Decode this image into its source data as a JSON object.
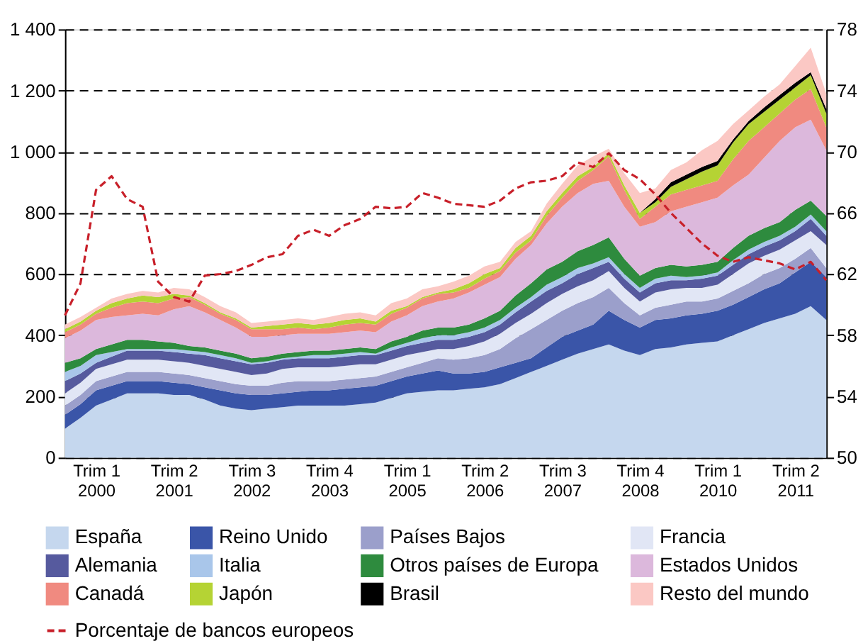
{
  "chart_data": {
    "type": "area",
    "stacked": true,
    "categories": [
      null,
      null,
      "Trim 1 2000",
      null,
      null,
      null,
      null,
      "Trim 2 2001",
      null,
      null,
      null,
      null,
      "Trim 3 2002",
      null,
      null,
      null,
      null,
      "Trim 4 2003",
      null,
      null,
      null,
      null,
      "Trim 1 2005",
      null,
      null,
      null,
      null,
      "Trim 2 2006",
      null,
      null,
      null,
      null,
      "Trim 3 2007",
      null,
      null,
      null,
      null,
      "Trim 4 2008",
      null,
      null,
      null,
      null,
      "Trim 1 2010",
      null,
      null,
      null,
      null,
      "Trim 2 2011",
      null,
      null
    ],
    "ylim": [
      0,
      1400
    ],
    "yticks": [
      0,
      200,
      400,
      600,
      800,
      {
        "value": 1000,
        "label": "1 000"
      },
      {
        "value": 1200,
        "label": "1 200"
      },
      {
        "value": 1400,
        "label": "1 400"
      }
    ],
    "y2lim": [
      50,
      78
    ],
    "y2ticks": [
      50,
      54,
      58,
      62,
      66,
      70,
      74,
      78
    ],
    "grid": "y",
    "legend": "bottom",
    "series": [
      {
        "name": "España",
        "color": "#c5d7ee",
        "values": [
          95,
          130,
          170,
          190,
          210,
          210,
          210,
          205,
          205,
          190,
          170,
          160,
          155,
          160,
          165,
          170,
          170,
          170,
          170,
          175,
          180,
          195,
          210,
          215,
          220,
          220,
          225,
          230,
          240,
          260,
          280,
          300,
          320,
          340,
          355,
          370,
          350,
          335,
          355,
          360,
          370,
          375,
          380,
          400,
          420,
          440,
          455,
          470,
          495,
          450
        ]
      },
      {
        "name": "Reino Unido",
        "color": "#3a55a8",
        "values": [
          45,
          45,
          50,
          45,
          40,
          40,
          40,
          40,
          35,
          40,
          50,
          50,
          50,
          45,
          45,
          45,
          50,
          50,
          55,
          55,
          55,
          55,
          55,
          60,
          65,
          55,
          50,
          50,
          55,
          50,
          45,
          60,
          75,
          75,
          80,
          110,
          100,
          90,
          95,
          95,
          95,
          95,
          100,
          100,
          105,
          110,
          115,
          135,
          145,
          140
        ]
      },
      {
        "name": "Países Bajos",
        "color": "#9b9fcb",
        "values": [
          30,
          30,
          30,
          30,
          30,
          30,
          30,
          30,
          30,
          30,
          30,
          30,
          30,
          30,
          35,
          35,
          30,
          30,
          30,
          30,
          30,
          30,
          30,
          35,
          40,
          45,
          50,
          55,
          60,
          80,
          95,
          90,
          85,
          90,
          90,
          75,
          55,
          40,
          40,
          45,
          45,
          40,
          40,
          45,
          45,
          50,
          50,
          45,
          45,
          30
        ]
      },
      {
        "name": "Francia",
        "color": "#e1e6f5",
        "values": [
          40,
          40,
          40,
          40,
          40,
          40,
          40,
          40,
          40,
          40,
          40,
          40,
          35,
          40,
          45,
          45,
          45,
          45,
          45,
          45,
          40,
          40,
          40,
          35,
          30,
          35,
          40,
          45,
          50,
          50,
          50,
          55,
          55,
          55,
          55,
          55,
          50,
          45,
          50,
          50,
          45,
          45,
          45,
          55,
          65,
          60,
          60,
          60,
          55,
          75
        ]
      },
      {
        "name": "Alemania",
        "color": "#565a9e",
        "values": [
          40,
          30,
          20,
          25,
          30,
          30,
          30,
          30,
          30,
          35,
          35,
          35,
          35,
          35,
          30,
          30,
          30,
          30,
          30,
          30,
          30,
          30,
          30,
          30,
          30,
          30,
          30,
          30,
          30,
          35,
          40,
          40,
          35,
          40,
          40,
          30,
          30,
          30,
          30,
          30,
          25,
          30,
          30,
          30,
          30,
          30,
          30,
          30,
          40,
          30
        ]
      },
      {
        "name": "Italia",
        "color": "#a9c6ea",
        "values": [
          30,
          25,
          25,
          15,
          5,
          5,
          5,
          10,
          10,
          10,
          10,
          10,
          5,
          5,
          5,
          5,
          10,
          10,
          10,
          10,
          5,
          10,
          10,
          15,
          15,
          15,
          15,
          15,
          15,
          15,
          15,
          20,
          20,
          20,
          15,
          15,
          15,
          15,
          15,
          15,
          10,
          10,
          10,
          15,
          15,
          15,
          15,
          15,
          15,
          15
        ]
      },
      {
        "name": "Otros países de Europa",
        "color": "#2e8b3e",
        "values": [
          30,
          25,
          20,
          25,
          30,
          30,
          25,
          20,
          15,
          15,
          15,
          15,
          15,
          15,
          15,
          15,
          15,
          15,
          15,
          15,
          15,
          20,
          20,
          25,
          25,
          25,
          25,
          30,
          30,
          40,
          45,
          50,
          50,
          55,
          60,
          65,
          50,
          40,
          35,
          35,
          35,
          35,
          35,
          40,
          45,
          45,
          45,
          55,
          45,
          50
        ]
      },
      {
        "name": "Estados Unidos",
        "color": "#dcb8dc",
        "values": [
          80,
          90,
          95,
          90,
          80,
          85,
          85,
          110,
          130,
          115,
          100,
          85,
          70,
          65,
          60,
          60,
          55,
          55,
          55,
          55,
          55,
          65,
          70,
          80,
          85,
          95,
          105,
          110,
          110,
          120,
          125,
          150,
          180,
          190,
          200,
          185,
          170,
          160,
          150,
          175,
          195,
          205,
          210,
          205,
          200,
          230,
          265,
          270,
          265,
          215
        ]
      },
      {
        "name": "Canadá",
        "color": "#f08a80",
        "values": [
          20,
          20,
          20,
          30,
          40,
          40,
          40,
          35,
          30,
          25,
          20,
          25,
          25,
          25,
          20,
          20,
          15,
          20,
          25,
          25,
          25,
          25,
          25,
          25,
          25,
          20,
          15,
          20,
          20,
          20,
          15,
          25,
          30,
          40,
          45,
          80,
          55,
          25,
          50,
          55,
          55,
          55,
          55,
          85,
          110,
          100,
          90,
          90,
          100,
          75
        ]
      },
      {
        "name": "Japón",
        "color": "#b5d334",
        "values": [
          10,
          10,
          10,
          15,
          15,
          20,
          20,
          15,
          5,
          5,
          5,
          5,
          5,
          10,
          15,
          15,
          15,
          15,
          15,
          15,
          10,
          10,
          5,
          5,
          5,
          10,
          15,
          15,
          10,
          15,
          15,
          15,
          15,
          15,
          10,
          10,
          15,
          20,
          15,
          25,
          35,
          45,
          50,
          55,
          55,
          50,
          45,
          40,
          45,
          45
        ]
      },
      {
        "name": "Brasil",
        "color": "#000000",
        "values": [
          0,
          0,
          0,
          0,
          0,
          0,
          0,
          0,
          0,
          0,
          0,
          0,
          0,
          0,
          0,
          0,
          0,
          0,
          0,
          0,
          0,
          0,
          0,
          0,
          0,
          0,
          0,
          0,
          0,
          0,
          0,
          0,
          0,
          0,
          0,
          0,
          0,
          0,
          10,
          15,
          15,
          15,
          15,
          10,
          10,
          15,
          15,
          15,
          10,
          15
        ]
      },
      {
        "name": "Resto del mundo",
        "color": "#fbc8c4",
        "values": [
          15,
          15,
          10,
          15,
          15,
          15,
          15,
          20,
          20,
          20,
          20,
          20,
          15,
          15,
          15,
          15,
          15,
          20,
          20,
          20,
          20,
          25,
          25,
          25,
          20,
          25,
          25,
          25,
          20,
          20,
          15,
          25,
          30,
          35,
          35,
          15,
          40,
          65,
          35,
          40,
          40,
          55,
          65,
          50,
          35,
          35,
          35,
          55,
          80,
          50
        ]
      },
      {
        "name": "Porcentaje de bancos europeos",
        "type": "line",
        "axis": "y2",
        "color": "#c8202a",
        "line_style": "dashed",
        "values": [
          59.3,
          61.4,
          67.5,
          68.4,
          66.9,
          66.4,
          61.5,
          60.5,
          60.2,
          61.9,
          62.0,
          62.2,
          62.6,
          63.1,
          63.3,
          64.5,
          64.9,
          64.5,
          65.2,
          65.6,
          66.4,
          66.3,
          66.4,
          67.3,
          67.0,
          66.6,
          66.5,
          66.4,
          66.8,
          67.6,
          68.0,
          68.1,
          68.4,
          69.3,
          69.0,
          69.9,
          68.8,
          68.2,
          67.2,
          66.0,
          65.0,
          64.0,
          63.2,
          62.8,
          63.1,
          62.9,
          62.7,
          62.3,
          62.8,
          61.6
        ]
      }
    ]
  }
}
